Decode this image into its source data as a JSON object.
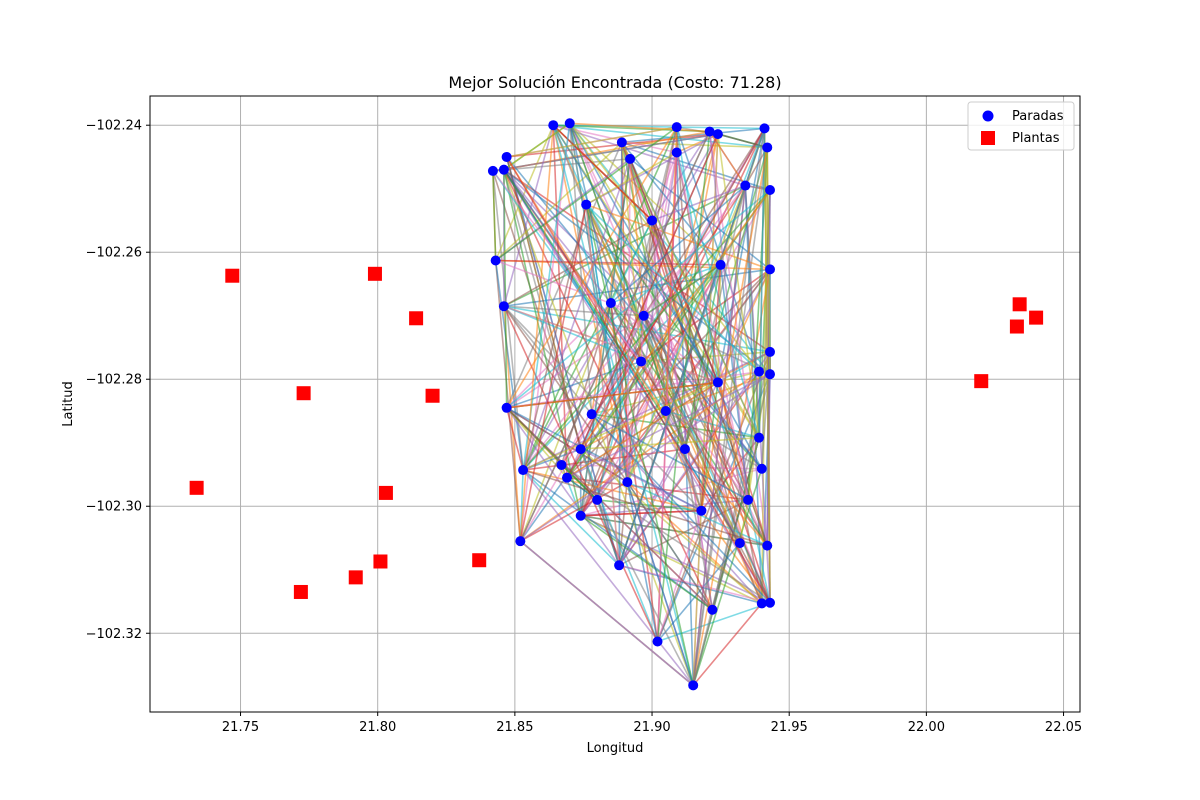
{
  "chart_data": {
    "type": "scatter",
    "title": "Mejor Solución Encontrada (Costo: 71.28)",
    "xlabel": "Longitud",
    "ylabel": "Latitud",
    "xlim": [
      21.717,
      22.056
    ],
    "ylim": [
      -102.3324,
      -102.2354
    ],
    "xticks": [
      21.75,
      21.8,
      21.85,
      21.9,
      21.95,
      22.0,
      22.05
    ],
    "xtick_labels": [
      "21.75",
      "21.80",
      "21.85",
      "21.90",
      "21.95",
      "22.00",
      "22.05"
    ],
    "yticks": [
      -102.24,
      -102.26,
      -102.28,
      -102.3,
      -102.32
    ],
    "ytick_labels": [
      "−102.24",
      "−102.26",
      "−102.28",
      "−102.30",
      "−102.32"
    ],
    "grid": true,
    "legend_position": "top-right",
    "series": [
      {
        "name": "Paradas",
        "marker": "circle",
        "color": "#0000ff",
        "points": [
          {
            "x": 21.864,
            "y": -102.24
          },
          {
            "x": 21.87,
            "y": -102.2397
          },
          {
            "x": 21.909,
            "y": -102.2403
          },
          {
            "x": 21.921,
            "y": -102.241
          },
          {
            "x": 21.924,
            "y": -102.2414
          },
          {
            "x": 21.941,
            "y": -102.2405
          },
          {
            "x": 21.889,
            "y": -102.2427
          },
          {
            "x": 21.942,
            "y": -102.2435
          },
          {
            "x": 21.909,
            "y": -102.2443
          },
          {
            "x": 21.847,
            "y": -102.245
          },
          {
            "x": 21.892,
            "y": -102.2453
          },
          {
            "x": 21.846,
            "y": -102.247
          },
          {
            "x": 21.842,
            "y": -102.2472
          },
          {
            "x": 21.943,
            "y": -102.2502
          },
          {
            "x": 21.934,
            "y": -102.2495
          },
          {
            "x": 21.876,
            "y": -102.2525
          },
          {
            "x": 21.9,
            "y": -102.255
          },
          {
            "x": 21.843,
            "y": -102.2613
          },
          {
            "x": 21.943,
            "y": -102.2627
          },
          {
            "x": 21.846,
            "y": -102.2685
          },
          {
            "x": 21.897,
            "y": -102.27
          },
          {
            "x": 21.943,
            "y": -102.2757
          },
          {
            "x": 21.943,
            "y": -102.2792
          },
          {
            "x": 21.939,
            "y": -102.2788
          },
          {
            "x": 21.924,
            "y": -102.2805
          },
          {
            "x": 21.847,
            "y": -102.2845
          },
          {
            "x": 21.878,
            "y": -102.2855
          },
          {
            "x": 21.939,
            "y": -102.2892
          },
          {
            "x": 21.912,
            "y": -102.291
          },
          {
            "x": 21.874,
            "y": -102.291
          },
          {
            "x": 21.853,
            "y": -102.2943
          },
          {
            "x": 21.94,
            "y": -102.2941
          },
          {
            "x": 21.867,
            "y": -102.2935
          },
          {
            "x": 21.869,
            "y": -102.2955
          },
          {
            "x": 21.891,
            "y": -102.2962
          },
          {
            "x": 21.935,
            "y": -102.299
          },
          {
            "x": 21.874,
            "y": -102.3015
          },
          {
            "x": 21.918,
            "y": -102.3007
          },
          {
            "x": 21.852,
            "y": -102.3055
          },
          {
            "x": 21.932,
            "y": -102.3058
          },
          {
            "x": 21.942,
            "y": -102.3062
          },
          {
            "x": 21.888,
            "y": -102.3093
          },
          {
            "x": 21.94,
            "y": -102.3153
          },
          {
            "x": 21.943,
            "y": -102.3152
          },
          {
            "x": 21.922,
            "y": -102.3163
          },
          {
            "x": 21.902,
            "y": -102.3213
          },
          {
            "x": 21.915,
            "y": -102.3282
          },
          {
            "x": 21.885,
            "y": -102.268
          },
          {
            "x": 21.905,
            "y": -102.285
          },
          {
            "x": 21.896,
            "y": -102.2772
          },
          {
            "x": 21.925,
            "y": -102.262
          },
          {
            "x": 21.88,
            "y": -102.299
          }
        ]
      },
      {
        "name": "Plantas",
        "marker": "square",
        "color": "#ff0000",
        "points": [
          {
            "x": 21.747,
            "y": -102.2637
          },
          {
            "x": 21.799,
            "y": -102.2634
          },
          {
            "x": 21.814,
            "y": -102.2704
          },
          {
            "x": 21.773,
            "y": -102.2822
          },
          {
            "x": 21.82,
            "y": -102.2826
          },
          {
            "x": 21.734,
            "y": -102.2971
          },
          {
            "x": 21.803,
            "y": -102.2979
          },
          {
            "x": 21.801,
            "y": -102.3087
          },
          {
            "x": 21.837,
            "y": -102.3085
          },
          {
            "x": 21.792,
            "y": -102.3112
          },
          {
            "x": 21.772,
            "y": -102.3135
          },
          {
            "x": 22.034,
            "y": -102.2682
          },
          {
            "x": 22.04,
            "y": -102.2703
          },
          {
            "x": 22.033,
            "y": -102.2717
          },
          {
            "x": 22.02,
            "y": -102.2803
          }
        ]
      }
    ],
    "route_edges": {
      "description_source": "many colored route segments connecting Paradas",
      "palette": [
        "#1f77b4",
        "#ff7f0e",
        "#2ca02c",
        "#d62728",
        "#9467bd",
        "#8c564b",
        "#e377c2",
        "#7f7f7f",
        "#bcbd22",
        "#17becf"
      ],
      "opacity": 0.55
    }
  }
}
